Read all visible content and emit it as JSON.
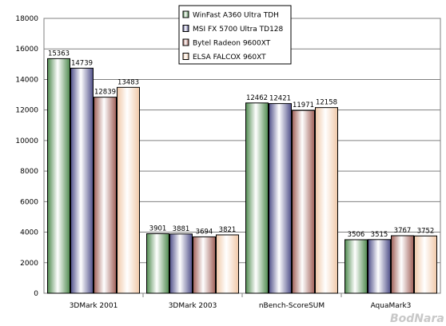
{
  "chart_data": {
    "type": "bar",
    "categories": [
      "3DMark 2001",
      "3DMark 2003",
      "nBench-ScoreSUM",
      "AquaMark3"
    ],
    "series": [
      {
        "name": "WinFast A360 Ultra TDH",
        "values": [
          15363,
          3901,
          12462,
          3506
        ],
        "color": "#4f8a4f"
      },
      {
        "name": "MSI FX 5700 Ultra TD128",
        "values": [
          14739,
          3881,
          12421,
          3515
        ],
        "color": "#50508a"
      },
      {
        "name": "Bytel Radeon 9600XT",
        "values": [
          12839,
          3694,
          11971,
          3767
        ],
        "color": "#a06058"
      },
      {
        "name": "ELSA FALCOX 960XT",
        "values": [
          13483,
          3821,
          12158,
          3752
        ],
        "color": "#f0c8a8"
      }
    ],
    "ylim": [
      0,
      18000
    ],
    "yticks": [
      0,
      2000,
      4000,
      6000,
      8000,
      10000,
      12000,
      14000,
      16000,
      18000
    ],
    "grid": true,
    "legend_position": "top-center",
    "xlabel": "",
    "ylabel": ""
  },
  "watermark": "BodNara"
}
